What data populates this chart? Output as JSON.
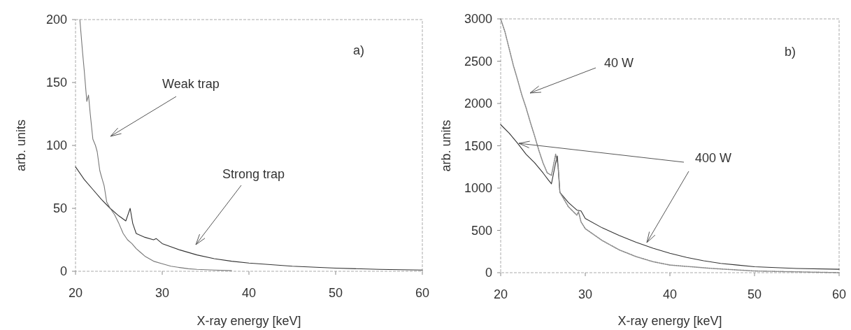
{
  "chart_data": [
    {
      "type": "line",
      "xlabel": "X-ray energy [keV]",
      "ylabel": "arb. units",
      "xlim": [
        20,
        60
      ],
      "ylim": [
        0,
        200
      ],
      "xticks": [
        20,
        30,
        40,
        50,
        60
      ],
      "yticks": [
        0,
        50,
        100,
        150,
        200
      ],
      "grid": false,
      "annotations": [
        "a)",
        "Weak trap",
        "Strong trap"
      ],
      "series": [
        {
          "color": "#333333",
          "line_style": "solid",
          "x": [
            20,
            21,
            22,
            23,
            24,
            25,
            25.8,
            26.3,
            26.6,
            27,
            28,
            29,
            29.3,
            30,
            32,
            34,
            36,
            38,
            40,
            45,
            50,
            55,
            60
          ],
          "values": [
            83,
            73,
            65,
            57,
            50,
            44,
            40,
            50,
            38,
            30,
            27,
            25,
            26,
            22,
            17,
            13,
            10,
            8,
            6.5,
            4,
            2.5,
            1.5,
            1
          ]
        },
        {
          "color": "#777777",
          "line_style": "solid",
          "x": [
            20.5,
            20.8,
            21,
            21.3,
            21.5,
            21.7,
            22,
            22.3,
            22.5,
            22.8,
            23,
            23.3,
            23.6,
            24,
            24.5,
            25,
            25.5,
            26,
            26.5,
            27,
            27.5,
            28,
            28.5,
            29,
            30,
            31,
            32,
            33,
            34,
            36,
            38
          ],
          "values": [
            200,
            175,
            160,
            135,
            140,
            125,
            105,
            100,
            95,
            80,
            75,
            68,
            55,
            50,
            45,
            38,
            30,
            25,
            22,
            18,
            15,
            12,
            10,
            8,
            6,
            4,
            3,
            2,
            1.5,
            1,
            0.5
          ]
        }
      ]
    },
    {
      "type": "line",
      "xlabel": "X-ray energy [keV]",
      "ylabel": "arb. units",
      "xlim": [
        20,
        60
      ],
      "ylim": [
        0,
        3000
      ],
      "xticks": [
        20,
        30,
        40,
        50,
        60
      ],
      "yticks": [
        0,
        500,
        1000,
        1500,
        2000,
        2500,
        3000
      ],
      "grid": false,
      "annotations": [
        "b)",
        "40 W",
        "400 W"
      ],
      "series": [
        {
          "color": "#333333",
          "line_style": "solid",
          "x": [
            20,
            21,
            22,
            23,
            24,
            25,
            25.6,
            26,
            26.5,
            26.7,
            27,
            28,
            29,
            29.5,
            30,
            32,
            34,
            36,
            38,
            40,
            42,
            44,
            46,
            48,
            50,
            55,
            60
          ],
          "values": [
            1750,
            1650,
            1530,
            1400,
            1300,
            1180,
            1100,
            1050,
            1300,
            1380,
            950,
            830,
            740,
            730,
            640,
            530,
            440,
            360,
            290,
            230,
            180,
            140,
            110,
            90,
            70,
            50,
            40
          ]
        },
        {
          "color": "#888888",
          "line_style": "dotted",
          "x": [
            20,
            20.5,
            21,
            21.5,
            22,
            22.5,
            23,
            23.5,
            24,
            24.5,
            25,
            25.5,
            26,
            26.3,
            26.5,
            26.8,
            27,
            28,
            29,
            29.2,
            29.5,
            30,
            32,
            34,
            36,
            38,
            40,
            45,
            50,
            55,
            60
          ],
          "values": [
            3000,
            2850,
            2650,
            2450,
            2280,
            2100,
            1950,
            1780,
            1620,
            1450,
            1300,
            1180,
            1150,
            1300,
            1400,
            1250,
            950,
            780,
            680,
            720,
            600,
            520,
            380,
            270,
            190,
            130,
            90,
            50,
            20,
            10,
            0
          ]
        }
      ]
    }
  ]
}
